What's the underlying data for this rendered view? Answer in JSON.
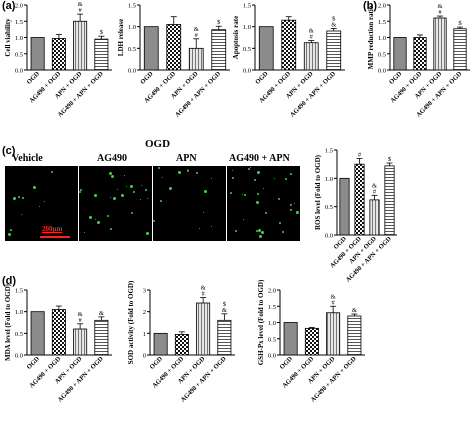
{
  "panel_letters": {
    "a": "(a)",
    "b": "(b)",
    "c": "(c)",
    "d": "(d)"
  },
  "images": {
    "title": "OGD",
    "labels": [
      "Vehicle",
      "AG490",
      "APN",
      "AG490 + APN"
    ],
    "scale_bar": "200μm"
  },
  "colors": {
    "accent_green": "#3fd13f",
    "scale_red": "#ff2020"
  },
  "chart_data": [
    {
      "id": "cell-viability",
      "type": "bar",
      "ylabel": "Cell viability",
      "ylim": [
        0,
        2
      ],
      "yticks": [
        "0.0",
        "0.5",
        "1.0",
        "1.5",
        "2.0"
      ],
      "categories": [
        "OGD",
        "AG490 + OGD",
        "APN + OGD",
        "AG490 + APN + OGD"
      ],
      "values": [
        1.0,
        0.97,
        1.5,
        0.95
      ],
      "errors": [
        0.0,
        0.12,
        0.22,
        0.09
      ],
      "annotations": [
        "",
        "",
        "&\n#",
        "$"
      ]
    },
    {
      "id": "ldh-release",
      "type": "bar",
      "ylabel": "LDH release",
      "ylim": [
        0,
        1.5
      ],
      "yticks": [
        "0.0",
        "0.5",
        "1.0",
        "1.5"
      ],
      "categories": [
        "OGD",
        "AG490 + OGD",
        "APN + OGD",
        "AG490 + APN + OGD"
      ],
      "values": [
        1.0,
        1.05,
        0.5,
        0.93
      ],
      "errors": [
        0.0,
        0.18,
        0.22,
        0.08
      ],
      "annotations": [
        "",
        "",
        "&\n#",
        "$"
      ]
    },
    {
      "id": "apoptosis-rate",
      "type": "bar",
      "ylabel": "Apoptosis rate",
      "ylim": [
        0,
        1.5
      ],
      "yticks": [
        "0.0",
        "0.5",
        "1.0",
        "1.5"
      ],
      "categories": [
        "OGD",
        "AG490 + OGD",
        "APN + OGD",
        "AG490 + APN + OGD"
      ],
      "values": [
        1.0,
        1.15,
        0.63,
        0.9
      ],
      "errors": [
        0.0,
        0.08,
        0.05,
        0.06
      ],
      "annotations": [
        "",
        "",
        "&\n#",
        "$\n&"
      ]
    },
    {
      "id": "mmp-reduction",
      "type": "bar",
      "ylabel": "MMP reduction ratio",
      "ylim": [
        0,
        2
      ],
      "yticks": [
        "0.0",
        "0.5",
        "1.0",
        "1.5",
        "2.0"
      ],
      "categories": [
        "OGD",
        "AG490 + OGD",
        "APN + OGD",
        "AG490 + APN + OGD"
      ],
      "values": [
        1.0,
        1.0,
        1.6,
        1.27
      ],
      "errors": [
        0.0,
        0.08,
        0.06,
        0.05
      ],
      "annotations": [
        "",
        "",
        "&\n#",
        "$"
      ]
    },
    {
      "id": "ros-level",
      "type": "bar",
      "ylabel": "ROS level (Fold to OGD)",
      "ylim": [
        0,
        1.5
      ],
      "yticks": [
        "0.0",
        "0.5",
        "1.0",
        "1.5"
      ],
      "categories": [
        "OGD",
        "AG490 + OGD",
        "APN + OGD",
        "AG490 + APN + OGD"
      ],
      "values": [
        1.0,
        1.25,
        0.62,
        1.22
      ],
      "errors": [
        0.0,
        0.1,
        0.08,
        0.05
      ],
      "annotations": [
        "",
        "#",
        "&\n#",
        "$"
      ]
    },
    {
      "id": "mda-level",
      "type": "bar",
      "ylabel": "MDA level (Fold to OGD)",
      "ylim": [
        0,
        1.5
      ],
      "yticks": [
        "0.0",
        "0.5",
        "1.0",
        "1.5"
      ],
      "categories": [
        "OGD",
        "AG490 + OGD",
        "APN + OGD",
        "AG490 + APN + OGD"
      ],
      "values": [
        1.0,
        1.05,
        0.6,
        0.8
      ],
      "errors": [
        0.0,
        0.08,
        0.12,
        0.08
      ],
      "annotations": [
        "",
        "",
        "&\n#",
        "&"
      ]
    },
    {
      "id": "sod-activity",
      "type": "bar",
      "ylabel": "SOD activity (Fold to OGD)",
      "ylim": [
        0,
        3
      ],
      "yticks": [
        "0",
        "1",
        "2",
        "3"
      ],
      "categories": [
        "OGD",
        "AG490 + OGD",
        "APN + OGD",
        "AG490 + APN + OGD"
      ],
      "values": [
        1.0,
        0.95,
        2.4,
        1.6
      ],
      "errors": [
        0.0,
        0.12,
        0.25,
        0.3
      ],
      "annotations": [
        "",
        "",
        "&\n#",
        "$\n&"
      ]
    },
    {
      "id": "gsh-px-level",
      "type": "bar",
      "ylabel": "GSH-Px level (Fold to OGD)",
      "ylim": [
        0,
        2
      ],
      "yticks": [
        "0.0",
        "0.5",
        "1.0",
        "1.5",
        "2.0"
      ],
      "categories": [
        "OGD",
        "AG490 + OGD",
        "APN + OGD",
        "AG490 + APN + OGD"
      ],
      "values": [
        1.0,
        0.82,
        1.3,
        1.2
      ],
      "errors": [
        0.0,
        0.03,
        0.2,
        0.06
      ],
      "annotations": [
        "",
        "",
        "&\n#",
        "&"
      ]
    }
  ]
}
